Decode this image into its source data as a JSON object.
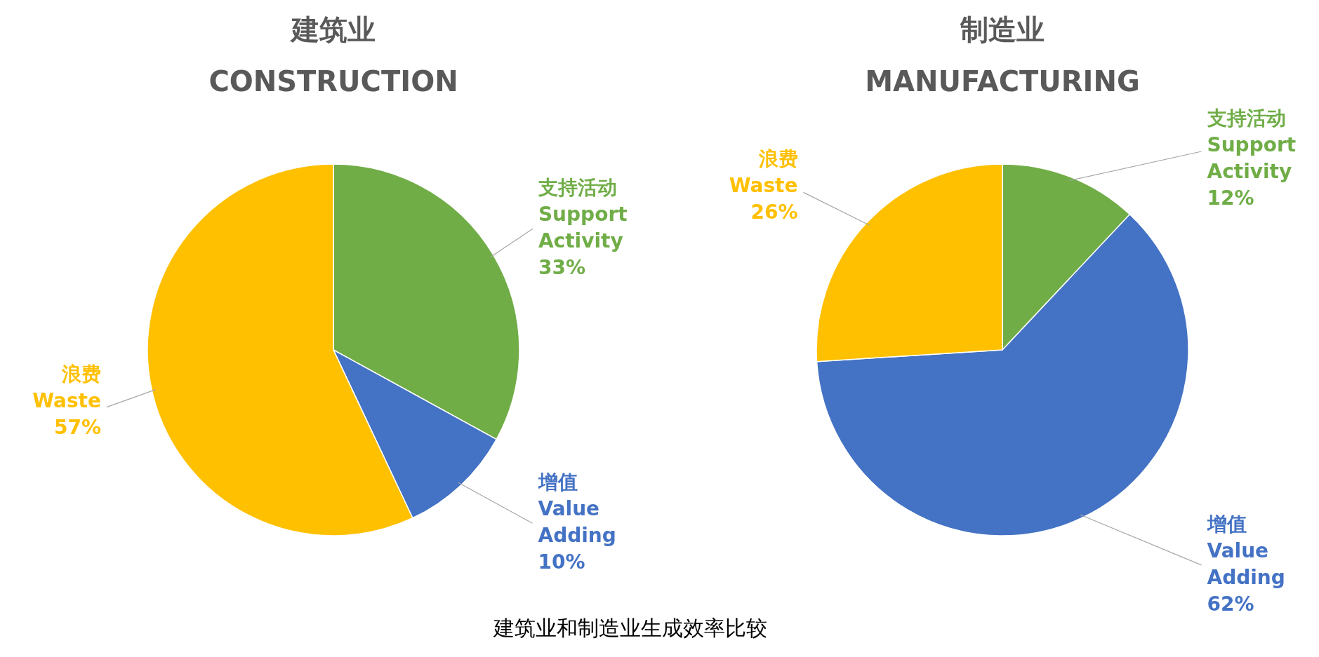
{
  "chart_data": [
    {
      "type": "pie",
      "title": "建筑业\nCONSTRUCTION",
      "categories": [
        "支持活动\nSupport\nActivity",
        "增值\nValue\nAdding",
        "浪费\nWaste"
      ],
      "values": [
        33,
        10,
        57
      ],
      "colors": [
        "#70ad47",
        "#4472c4",
        "#ffc000"
      ],
      "value_labels": [
        "33%",
        "10%",
        "57%"
      ],
      "annotations": [
        "建筑业和制造业生成效率比较"
      ]
    },
    {
      "type": "pie",
      "title": "制造业\nMANUFACTURING",
      "categories": [
        "支持活动\nSupport\nActivity",
        "增值\nValue\nAdding",
        "浪费\nWaste"
      ],
      "values": [
        12,
        62,
        26
      ],
      "colors": [
        "#70ad47",
        "#4472c4",
        "#ffc000"
      ],
      "value_labels": [
        "12%",
        "62%",
        "26%"
      ]
    }
  ]
}
